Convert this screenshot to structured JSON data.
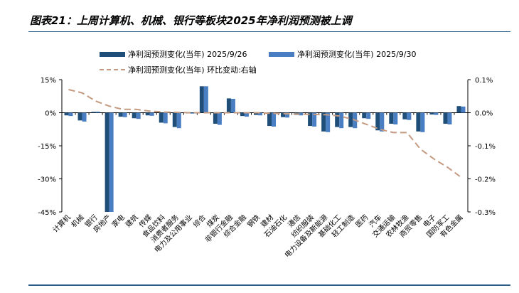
{
  "title": "图表21：上周计算机、机械、银行等板块2025年净利润预测被上调",
  "chart_data": {
    "type": "bar",
    "categories": [
      "计算机",
      "机械",
      "银行",
      "房地产",
      "家电",
      "建筑",
      "传媒",
      "食品饮料",
      "消费者服务",
      "电力及公用事业",
      "综合",
      "煤炭",
      "非银行金融",
      "综合金融",
      "钢铁",
      "建材",
      "石油石化",
      "通信",
      "纺织服装",
      "电力设备及新能源",
      "基础化工",
      "轻工制造",
      "医药",
      "汽车",
      "交通运输",
      "农林牧渔",
      "商贸零售",
      "电子",
      "国防军工",
      "有色金属"
    ],
    "series": [
      {
        "name": "净利润预测变化(当年) 2025/9/26",
        "color": "#1f4e79",
        "axis": "left",
        "values": [
          -1.2,
          -3.5,
          0.4,
          -45,
          -1.8,
          -2.5,
          -1.2,
          -4.5,
          -6.5,
          -0.3,
          12.0,
          -5.0,
          6.5,
          -1.5,
          -1.0,
          -6.0,
          -2.0,
          -1.0,
          -6.0,
          -8.5,
          -6.5,
          -6.5,
          -2.5,
          -8.0,
          -5.0,
          -3.0,
          -8.5,
          -0.8,
          -5.0,
          3.0
        ]
      },
      {
        "name": "净利润预测变化(当年) 2025/9/30",
        "color": "#4a7ec2",
        "axis": "left",
        "values": [
          -1.5,
          -4.0,
          0.5,
          -45,
          -2.0,
          -2.8,
          -1.4,
          -4.8,
          -7.0,
          -0.4,
          12.0,
          -5.5,
          6.3,
          -1.8,
          -1.2,
          -6.3,
          -2.2,
          -1.2,
          -6.3,
          -8.8,
          -7.0,
          -7.0,
          -2.8,
          -8.5,
          -5.3,
          -3.3,
          -8.8,
          -1.0,
          -5.3,
          2.8
        ]
      },
      {
        "name": "净利润预测变化(当年) 环比变动:右轴",
        "color": "#c49a80",
        "axis": "right",
        "style": "dashed-line",
        "values": [
          0.07,
          0.06,
          0.035,
          0.02,
          0.01,
          0.01,
          0.005,
          0.002,
          0.001,
          0.0,
          0.0,
          0.0,
          0.0,
          0.0,
          0.0,
          -0.002,
          -0.003,
          -0.004,
          -0.005,
          -0.006,
          -0.01,
          -0.02,
          -0.035,
          -0.05,
          -0.06,
          -0.06,
          -0.11,
          -0.14,
          -0.165,
          -0.195
        ]
      }
    ],
    "ylim_left": [
      -45,
      15
    ],
    "yticks_left": [
      15,
      0,
      -15,
      -30,
      -45
    ],
    "yticklabels_left": [
      "15%",
      "0%",
      "-15%",
      "-30%",
      "-45%"
    ],
    "ylim_right": [
      -0.3,
      0.1
    ],
    "yticks_right": [
      0.1,
      0.0,
      -0.1,
      -0.2,
      -0.3
    ],
    "yticklabels_right": [
      "0.1%",
      "0.0%",
      "-0.1%",
      "-0.2%",
      "-0.3%"
    ],
    "legend": [
      "净利润预测变化(当年) 2025/9/26",
      "净利润预测变化(当年) 2025/9/30",
      "净利润预测变化(当年) 环比变动:右轴"
    ]
  }
}
